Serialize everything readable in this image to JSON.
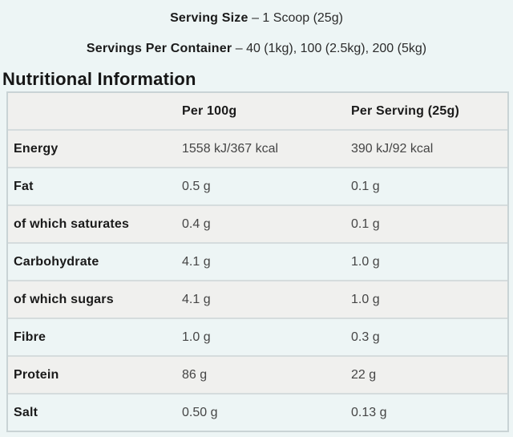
{
  "intro": {
    "serving_size_label": "Serving Size",
    "serving_size_value": "– 1 Scoop (25g)",
    "servings_label": "Servings Per Container",
    "servings_value": "– 40 (1kg), 100 (2.5kg), 200 (5kg)",
    "section_title": "Nutritional Information"
  },
  "table": {
    "columns": [
      "",
      "Per 100g",
      "Per Serving (25g)"
    ],
    "rows": [
      {
        "label": "Energy",
        "per_100g": "1558 kJ/367 kcal",
        "per_serving": "390 kJ/92 kcal"
      },
      {
        "label": "Fat",
        "per_100g": "0.5 g",
        "per_serving": "0.1 g"
      },
      {
        "label": "of which saturates",
        "per_100g": "0.4 g",
        "per_serving": "0.1 g"
      },
      {
        "label": "Carbohydrate",
        "per_100g": "4.1 g",
        "per_serving": "1.0 g"
      },
      {
        "label": "of which sugars",
        "per_100g": "4.1 g",
        "per_serving": "1.0 g"
      },
      {
        "label": "Fibre",
        "per_100g": "1.0 g",
        "per_serving": "0.3 g"
      },
      {
        "label": "Protein",
        "per_100g": "86 g",
        "per_serving": "22 g"
      },
      {
        "label": "Salt",
        "per_100g": "0.50 g",
        "per_serving": "0.13 g"
      }
    ]
  },
  "colors": {
    "page_background": "#edf5f5",
    "row_stripe_gray": "#f0f0ee",
    "row_stripe_tint": "#edf5f5",
    "table_border": "#c9d3d5",
    "text_primary": "#1a1a1a"
  }
}
